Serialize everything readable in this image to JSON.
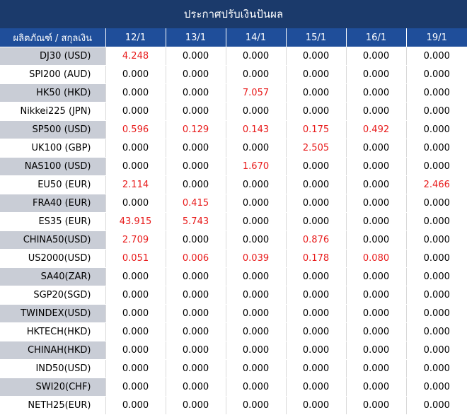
{
  "title": "ประกาศปรับเงินปันผล",
  "header": {
    "product_label": "ผลิตภัณฑ์ / สกุลเงิน",
    "dates": [
      "12/1",
      "13/1",
      "14/1",
      "15/1",
      "16/1",
      "19/1"
    ]
  },
  "colors": {
    "title_bg": "#1b3a6b",
    "header_bg": "#1f4e9a",
    "shaded_row_bg": "#c9cdd6",
    "nonzero_value": "#e81b1b"
  },
  "rows": [
    {
      "product": "DJ30 (USD)",
      "values": [
        "4.248",
        "0.000",
        "0.000",
        "0.000",
        "0.000",
        "0.000"
      ]
    },
    {
      "product": "SPI200 (AUD)",
      "values": [
        "0.000",
        "0.000",
        "0.000",
        "0.000",
        "0.000",
        "0.000"
      ]
    },
    {
      "product": "HK50 (HKD)",
      "values": [
        "0.000",
        "0.000",
        "7.057",
        "0.000",
        "0.000",
        "0.000"
      ]
    },
    {
      "product": "Nikkei225 (JPN)",
      "values": [
        "0.000",
        "0.000",
        "0.000",
        "0.000",
        "0.000",
        "0.000"
      ]
    },
    {
      "product": "SP500 (USD)",
      "values": [
        "0.596",
        "0.129",
        "0.143",
        "0.175",
        "0.492",
        "0.000"
      ]
    },
    {
      "product": "UK100 (GBP)",
      "values": [
        "0.000",
        "0.000",
        "0.000",
        "2.505",
        "0.000",
        "0.000"
      ]
    },
    {
      "product": "NAS100 (USD)",
      "values": [
        "0.000",
        "0.000",
        "1.670",
        "0.000",
        "0.000",
        "0.000"
      ]
    },
    {
      "product": "EU50 (EUR)",
      "values": [
        "2.114",
        "0.000",
        "0.000",
        "0.000",
        "0.000",
        "2.466"
      ]
    },
    {
      "product": "FRA40 (EUR)",
      "values": [
        "0.000",
        "0.415",
        "0.000",
        "0.000",
        "0.000",
        "0.000"
      ]
    },
    {
      "product": "ES35 (EUR)",
      "values": [
        "43.915",
        "5.743",
        "0.000",
        "0.000",
        "0.000",
        "0.000"
      ]
    },
    {
      "product": "CHINA50(USD)",
      "values": [
        "2.709",
        "0.000",
        "0.000",
        "0.876",
        "0.000",
        "0.000"
      ]
    },
    {
      "product": "US2000(USD)",
      "values": [
        "0.051",
        "0.006",
        "0.039",
        "0.178",
        "0.080",
        "0.000"
      ]
    },
    {
      "product": "SA40(ZAR)",
      "values": [
        "0.000",
        "0.000",
        "0.000",
        "0.000",
        "0.000",
        "0.000"
      ]
    },
    {
      "product": "SGP20(SGD)",
      "values": [
        "0.000",
        "0.000",
        "0.000",
        "0.000",
        "0.000",
        "0.000"
      ]
    },
    {
      "product": "TWINDEX(USD)",
      "values": [
        "0.000",
        "0.000",
        "0.000",
        "0.000",
        "0.000",
        "0.000"
      ]
    },
    {
      "product": "HKTECH(HKD)",
      "values": [
        "0.000",
        "0.000",
        "0.000",
        "0.000",
        "0.000",
        "0.000"
      ]
    },
    {
      "product": "CHINAH(HKD)",
      "values": [
        "0.000",
        "0.000",
        "0.000",
        "0.000",
        "0.000",
        "0.000"
      ]
    },
    {
      "product": "IND50(USD)",
      "values": [
        "0.000",
        "0.000",
        "0.000",
        "0.000",
        "0.000",
        "0.000"
      ]
    },
    {
      "product": "SWI20(CHF)",
      "values": [
        "0.000",
        "0.000",
        "0.000",
        "0.000",
        "0.000",
        "0.000"
      ]
    },
    {
      "product": "NETH25(EUR)",
      "values": [
        "0.000",
        "0.000",
        "0.000",
        "0.000",
        "0.000",
        "0.000"
      ]
    }
  ]
}
